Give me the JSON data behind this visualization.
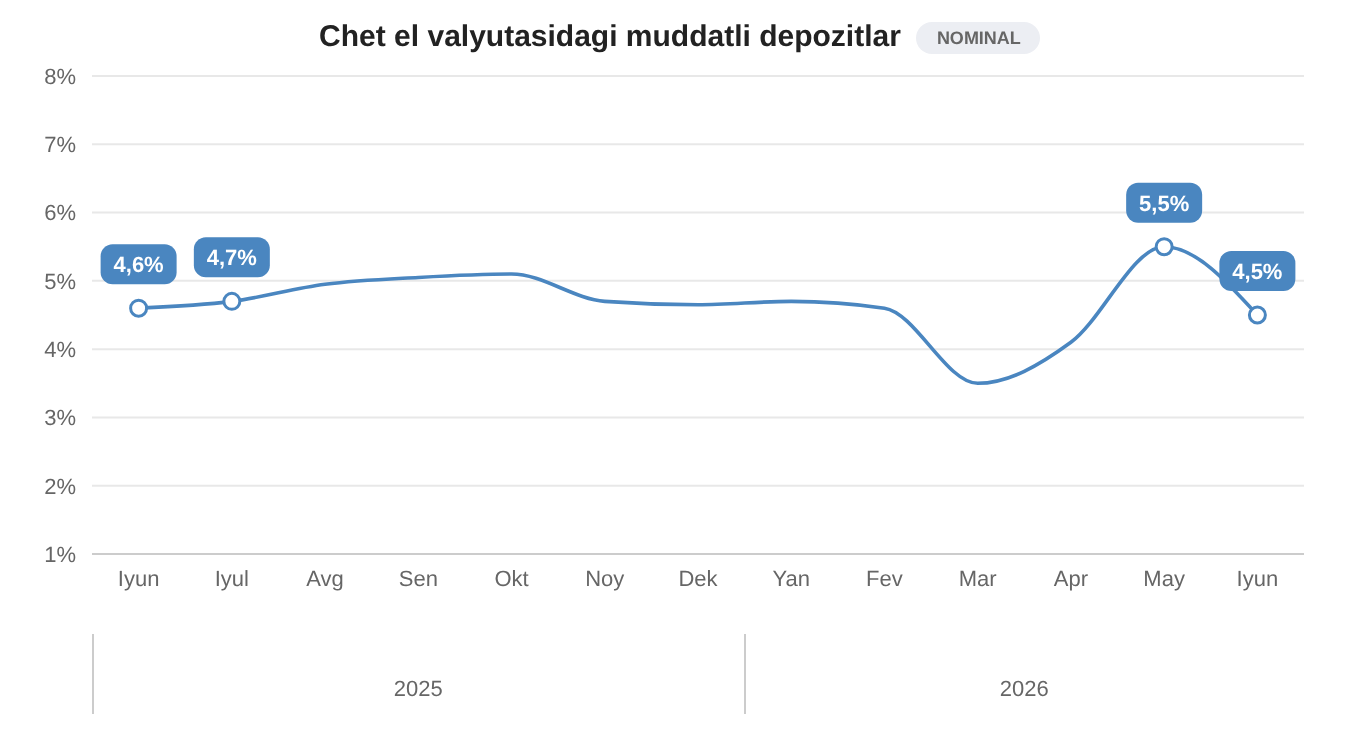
{
  "chart_data": {
    "type": "line",
    "title": "Chet el valyutasidagi muddatli depozitlar",
    "subtitle": "NOMINAL",
    "categories": [
      "Iyun",
      "Iyul",
      "Avg",
      "Sen",
      "Okt",
      "Noy",
      "Dek",
      "Yan",
      "Fev",
      "Mar",
      "Apr",
      "May",
      "Iyun"
    ],
    "series": [
      {
        "color": "#4a86c0",
        "values": [
          4.6,
          4.7,
          4.95,
          5.05,
          5.1,
          4.7,
          4.65,
          4.7,
          4.6,
          3.5,
          4.1,
          5.5,
          4.5
        ],
        "value_labels": [
          "4,6%",
          "4,7%",
          null,
          null,
          null,
          null,
          null,
          null,
          null,
          null,
          null,
          "5,5%",
          "4,5%"
        ]
      }
    ],
    "ylim": [
      1,
      8
    ],
    "yticks": [
      {
        "value": 1,
        "label": "1%"
      },
      {
        "value": 2,
        "label": "2%"
      },
      {
        "value": 3,
        "label": "3%"
      },
      {
        "value": 4,
        "label": "4%"
      },
      {
        "value": 5,
        "label": "5%"
      },
      {
        "value": 6,
        "label": "6%"
      },
      {
        "value": 7,
        "label": "7%"
      },
      {
        "value": 8,
        "label": "8%"
      }
    ],
    "grid": "y",
    "line_style": "solid",
    "annotations": [
      "2025",
      "2026"
    ]
  }
}
